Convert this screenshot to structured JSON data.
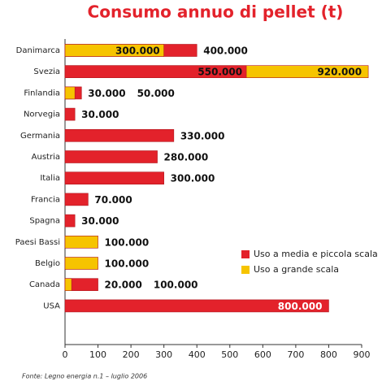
{
  "chart_data": {
    "type": "bar",
    "orientation": "horizontal",
    "overlap": true,
    "title": "Consumo annuo di pellet (t)",
    "categories": [
      "Danimarca",
      "Svezia",
      "Finlandia",
      "Norvegia",
      "Germania",
      "Austria",
      "Italia",
      "Francia",
      "Spagna",
      "Paesi Bassi",
      "Belgio",
      "Canada",
      "USA"
    ],
    "series": [
      {
        "name": "Uso a media e piccola scala",
        "color": "#e3222b",
        "values": [
          400,
          550,
          50,
          30,
          330,
          280,
          300,
          70,
          30,
          null,
          null,
          100,
          800
        ],
        "value_labels": [
          "400.000",
          "550.000",
          "50.000",
          "30.000",
          "330.000",
          "280.000",
          "300.000",
          "70.000",
          "30.000",
          null,
          null,
          "100.000",
          "800.000"
        ]
      },
      {
        "name": "Uso a grande scala",
        "color": "#f6c400",
        "values": [
          300,
          920,
          30,
          null,
          null,
          null,
          null,
          null,
          null,
          100,
          100,
          20,
          null
        ],
        "value_labels": [
          "300.000",
          "920.000",
          "30.000",
          null,
          null,
          null,
          null,
          null,
          null,
          "100.000",
          "100.000",
          "20.000",
          null
        ]
      }
    ],
    "xlim": [
      0,
      900
    ],
    "xticks": [
      0,
      100,
      200,
      300,
      400,
      500,
      600,
      700,
      800,
      900
    ],
    "legend": "lower right",
    "source": "Fonte: Legno energia n.1 – luglio 2006"
  }
}
